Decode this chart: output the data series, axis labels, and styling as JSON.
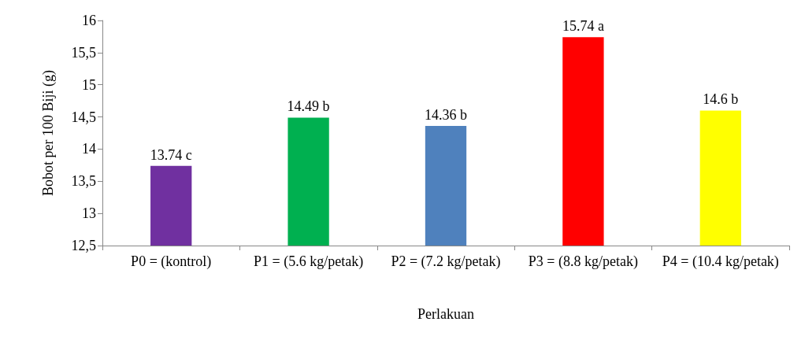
{
  "chart_data": {
    "type": "bar",
    "xlabel": "Perlakuan",
    "ylabel": "Bobot per 100 Biji (g)",
    "categories": [
      "P0 = (kontrol)",
      "P1 = (5.6 kg/petak)",
      "P2 = (7.2 kg/petak)",
      "P3 = (8.8 kg/petak)",
      "P4 = (10.4 kg/petak)"
    ],
    "values": [
      13.74,
      14.49,
      14.36,
      15.74,
      14.6
    ],
    "colors": [
      "#7030a0",
      "#00b050",
      "#4f81bd",
      "#ff0000",
      "#ffff00"
    ],
    "value_labels": [
      "13.74 c",
      "14.49 b",
      "14.36 b",
      "15.74 a",
      "14.6 b"
    ],
    "ylim": [
      12.5,
      16
    ],
    "yticks": [
      {
        "value": 12.5,
        "label": "12,5"
      },
      13,
      {
        "value": 13.5,
        "label": "13,5"
      },
      14,
      {
        "value": 14.5,
        "label": "14,5"
      },
      15,
      {
        "value": 15.5,
        "label": "15,5"
      },
      16
    ],
    "grid": false
  }
}
